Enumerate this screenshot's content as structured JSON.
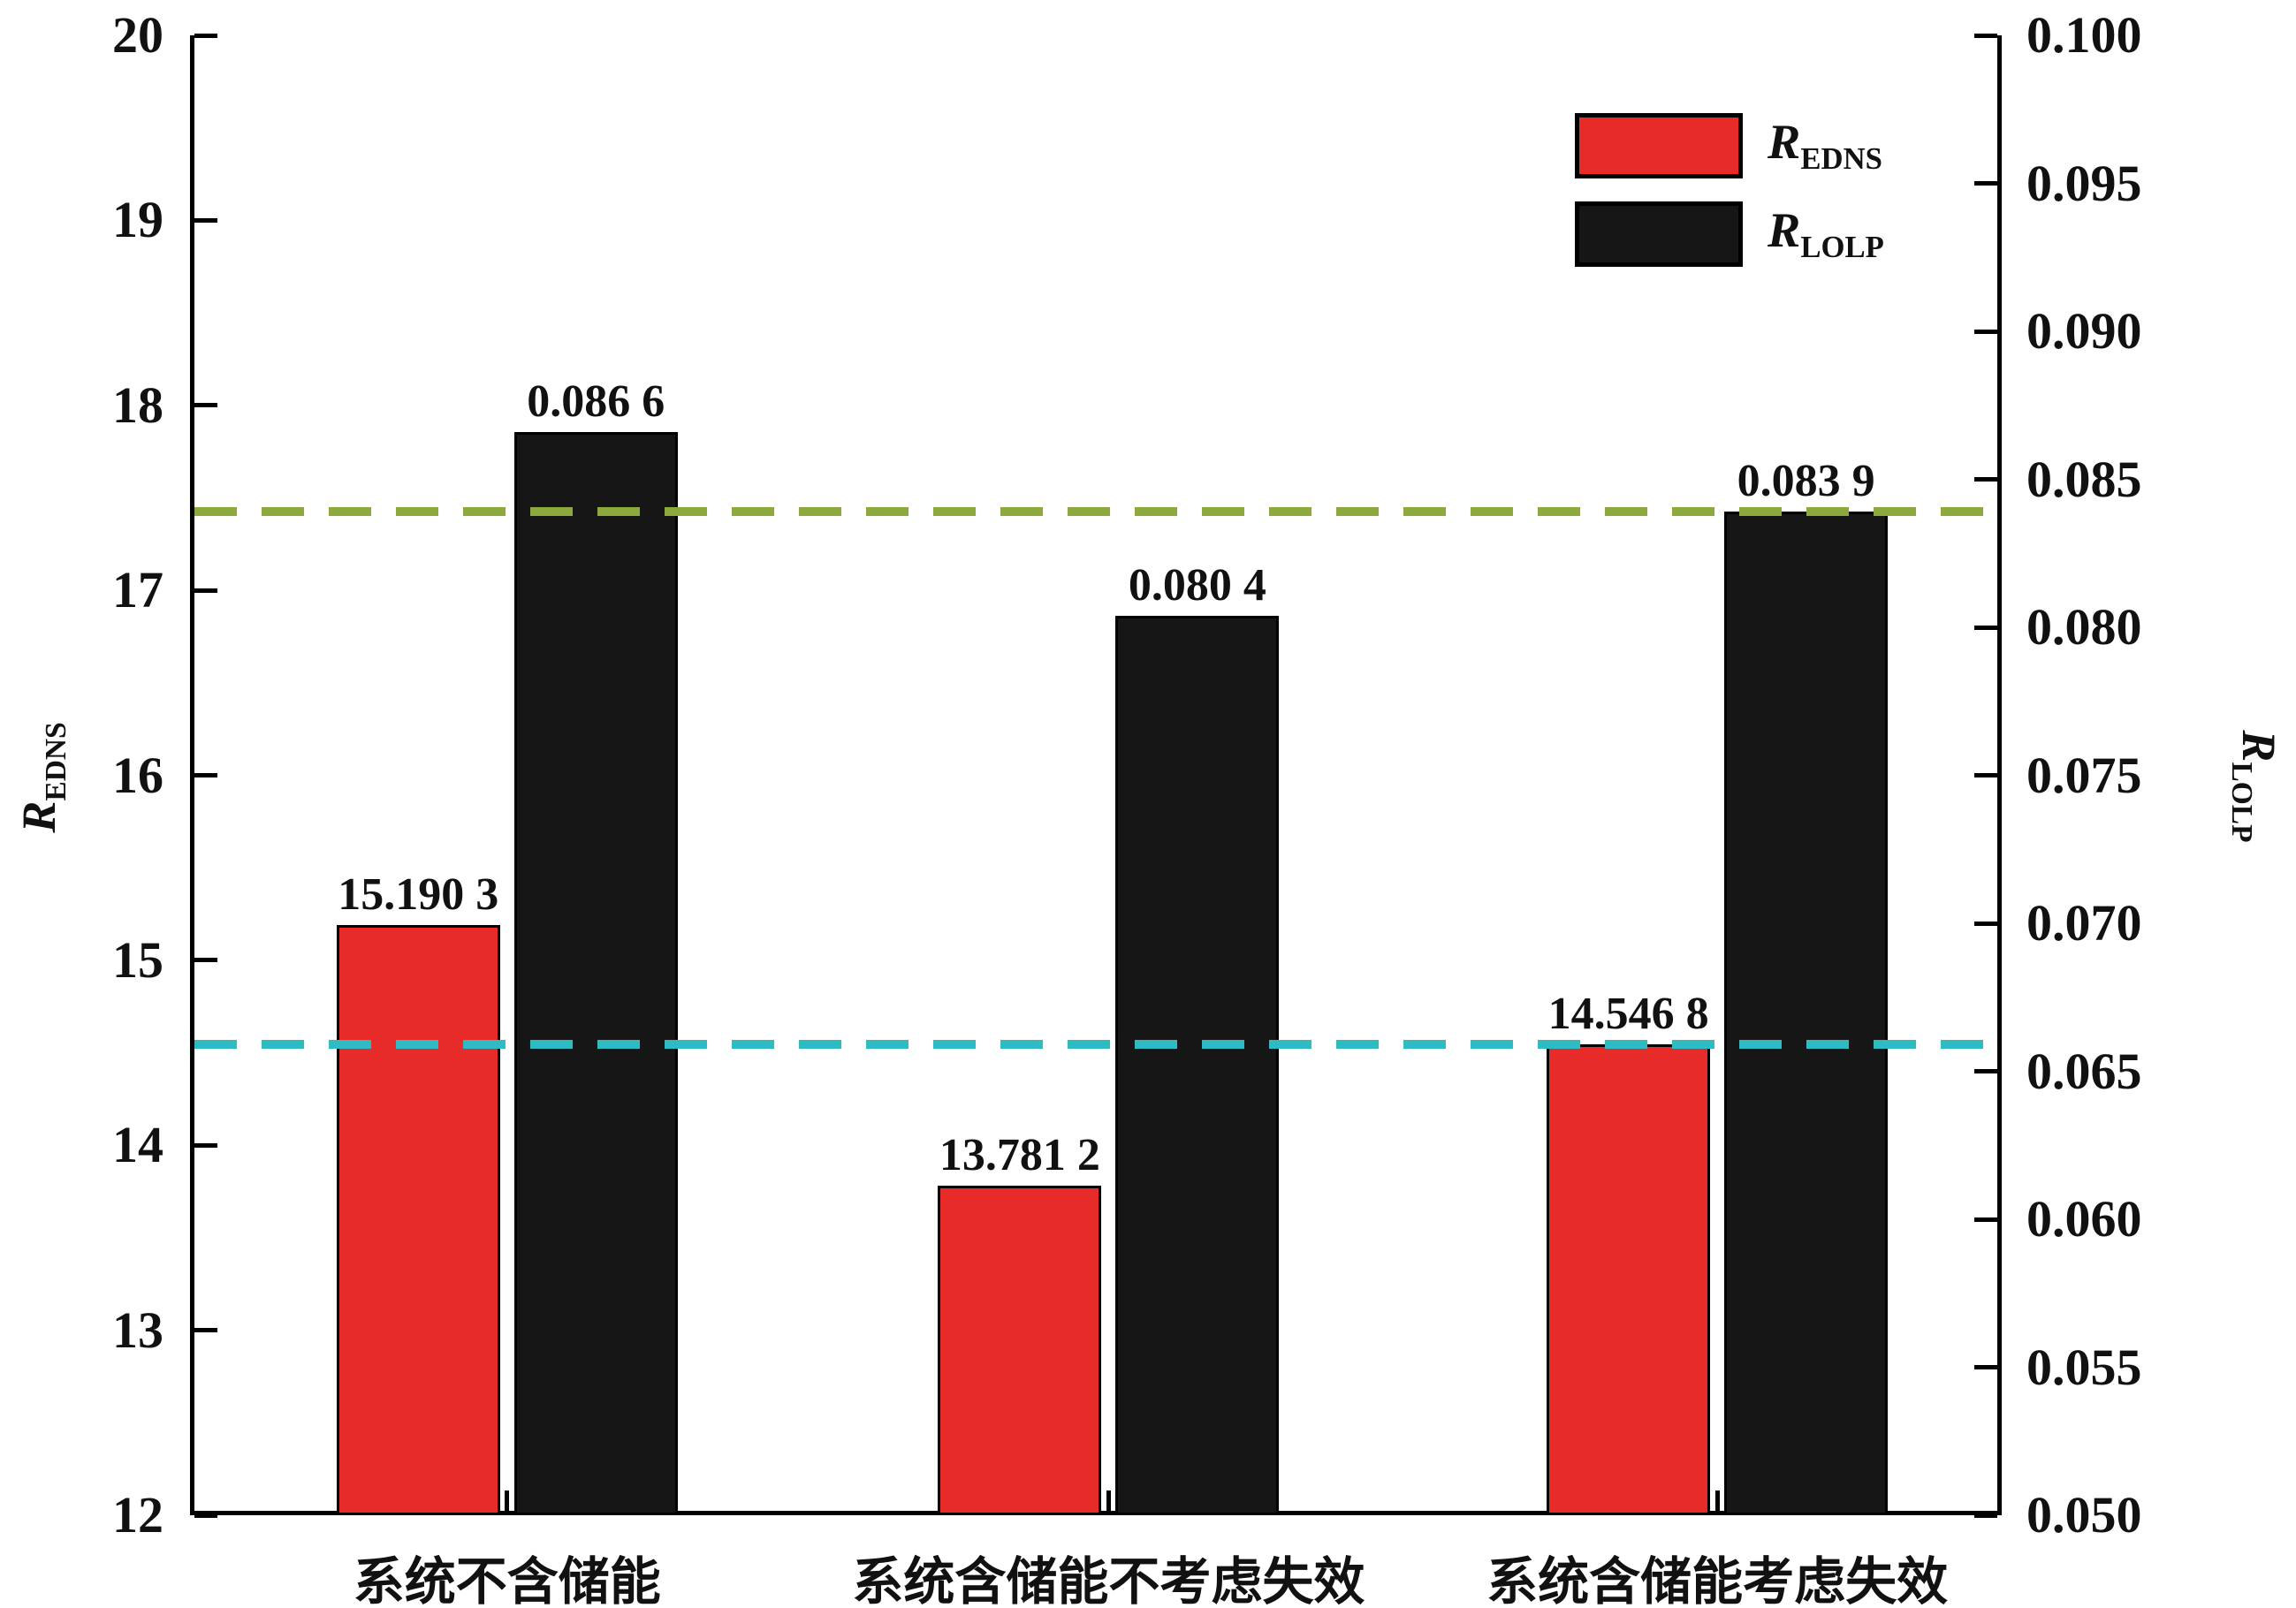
{
  "chart_data": {
    "type": "bar",
    "title": "",
    "categories": [
      "系统不含储能",
      "系统含储能不考虑失效",
      "系统含储能考虑失效"
    ],
    "series": [
      {
        "name": "R_EDNS",
        "axis": "left",
        "color": "#e62b28",
        "values": [
          15.1903,
          13.7812,
          14.5468
        ],
        "labels": [
          "15.190 3",
          "13.781 2",
          "14.546 8"
        ]
      },
      {
        "name": "R_LOLP",
        "axis": "right",
        "color": "#161616",
        "values": [
          0.0866,
          0.0804,
          0.0839
        ],
        "labels": [
          "0.086 6",
          "0.080 4",
          "0.083 9"
        ]
      }
    ],
    "left_axis": {
      "label_main": "R",
      "label_sub": "EDNS",
      "min": 12,
      "max": 20,
      "step": 1,
      "ticks": [
        "12",
        "13",
        "14",
        "15",
        "16",
        "17",
        "18",
        "19",
        "20"
      ]
    },
    "right_axis": {
      "label_main": "R",
      "label_sub": "LOLP",
      "min": 0.05,
      "max": 0.1,
      "step": 0.005,
      "ticks": [
        "0.050",
        "0.055",
        "0.060",
        "0.065",
        "0.070",
        "0.075",
        "0.080",
        "0.085",
        "0.090",
        "0.095",
        "0.100"
      ]
    },
    "reference_lines": [
      {
        "axis": "right",
        "value": 0.0839,
        "color": "#8ca93e",
        "style": "dashed"
      },
      {
        "axis": "left",
        "value": 14.5468,
        "color": "#2ebbc4",
        "style": "dashed"
      }
    ],
    "legend": {
      "position": "top-right",
      "items": [
        {
          "label_main": "R",
          "label_sub": "EDNS",
          "color": "#e62b28"
        },
        {
          "label_main": "R",
          "label_sub": "LOLP",
          "color": "#161616"
        }
      ]
    },
    "grid": false
  }
}
